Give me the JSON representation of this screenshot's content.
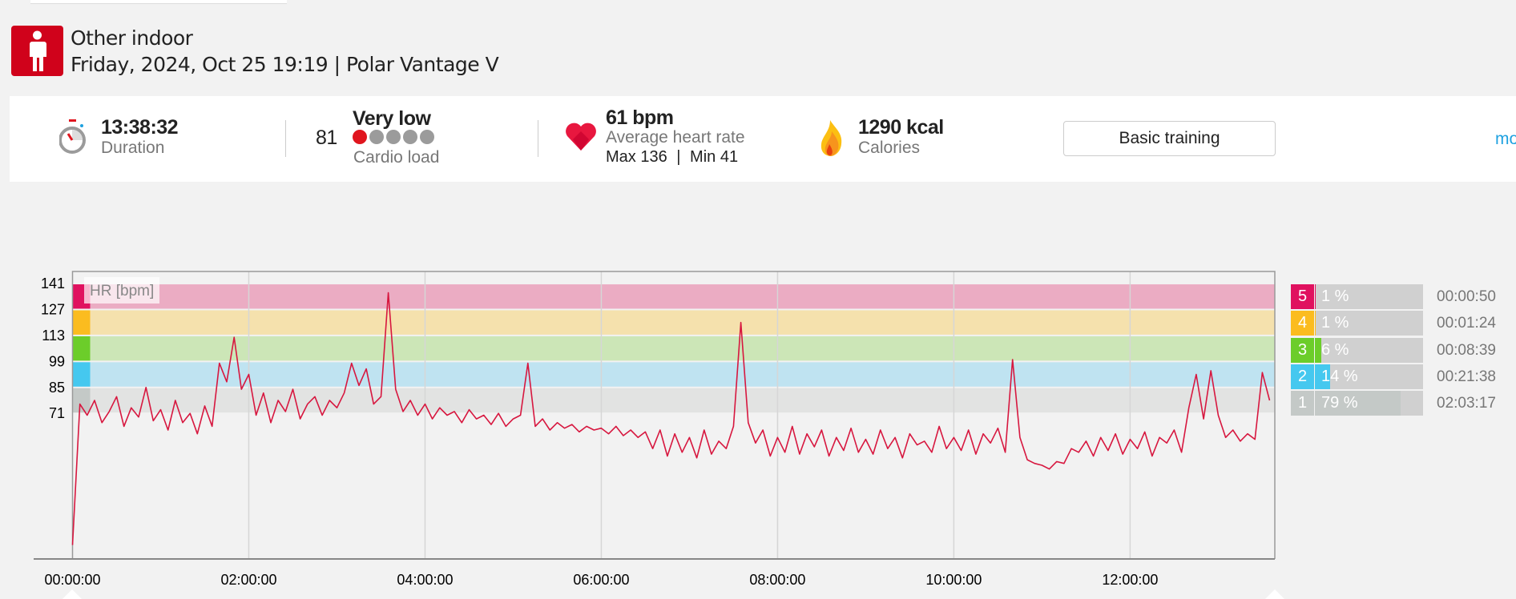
{
  "header": {
    "sport": "Other indoor",
    "subtitle": "Friday, 2024, Oct 25 19:19 | Polar Vantage V"
  },
  "summary": {
    "duration": {
      "value": "13:38:32",
      "label": "Duration"
    },
    "cardio_load": {
      "value": "81",
      "status": "Very low",
      "label": "Cardio load",
      "level": 1,
      "max_level": 5
    },
    "heart_rate": {
      "value": "61 bpm",
      "label": "Average heart rate",
      "max": "Max 136",
      "sep": "|",
      "min": "Min 41"
    },
    "calories": {
      "value": "1290 kcal",
      "label": "Calories"
    },
    "benefit_button": "Basic training",
    "more_link": "mo"
  },
  "colors": {
    "brand": "#d0021b",
    "hr_line": "#d7173f",
    "link": "#1ea1e0"
  },
  "zones": [
    {
      "zone": "5",
      "percent": "1 %",
      "fraction": 0.01,
      "time": "00:00:50",
      "color": "#e0115f",
      "band": "#ebacc3",
      "lo": 127,
      "hi": 141
    },
    {
      "zone": "4",
      "percent": "1 %",
      "fraction": 0.01,
      "time": "00:01:24",
      "color": "#fbbc1f",
      "band": "#f5e1ad",
      "lo": 113,
      "hi": 127
    },
    {
      "zone": "3",
      "percent": "6 %",
      "fraction": 0.06,
      "time": "00:08:39",
      "color": "#6ccd2a",
      "band": "#cce6b7",
      "lo": 99,
      "hi": 113
    },
    {
      "zone": "2",
      "percent": "14 %",
      "fraction": 0.14,
      "time": "00:21:38",
      "color": "#45c8ef",
      "band": "#bfe3f1",
      "lo": 85,
      "hi": 99
    },
    {
      "zone": "1",
      "percent": "79 %",
      "fraction": 0.79,
      "time": "02:03:17",
      "color": "#c4c9c7",
      "band": "#e2e3e2",
      "lo": 71,
      "hi": 85
    }
  ],
  "chart_data": {
    "type": "line",
    "title": "",
    "ylabel": "HR [bpm]",
    "xlabel": "",
    "y_ticks": [
      "141",
      "127",
      "113",
      "99",
      "85",
      "71"
    ],
    "y_tick_values": [
      141,
      127,
      113,
      99,
      85,
      71
    ],
    "ylim": [
      -7.5,
      147.5
    ],
    "x_ticks": [
      "00:00:00",
      "02:00:00",
      "04:00:00",
      "06:00:00",
      "08:00:00",
      "10:00:00",
      "12:00:00"
    ],
    "x_tick_hours": [
      0,
      2,
      4,
      6,
      8,
      10,
      12
    ],
    "xlim_hours": [
      0,
      13.642
    ],
    "grid": "vertical",
    "series": [
      {
        "name": "HR",
        "step_minutes": 5,
        "values": [
          0,
          76,
          70,
          78,
          66,
          72,
          80,
          64,
          74,
          69,
          85,
          67,
          73,
          62,
          78,
          66,
          71,
          60,
          75,
          64,
          98,
          88,
          112,
          84,
          92,
          70,
          82,
          66,
          78,
          72,
          84,
          68,
          76,
          80,
          70,
          78,
          74,
          82,
          98,
          86,
          95,
          76,
          80,
          136,
          84,
          72,
          78,
          70,
          76,
          68,
          74,
          70,
          72,
          66,
          73,
          68,
          70,
          65,
          71,
          64,
          68,
          70,
          98,
          64,
          68,
          62,
          66,
          63,
          65,
          61,
          64,
          62,
          63,
          60,
          64,
          59,
          62,
          58,
          61,
          52,
          62,
          48,
          60,
          50,
          58,
          47,
          62,
          49,
          56,
          52,
          64,
          120,
          66,
          55,
          62,
          48,
          58,
          50,
          64,
          49,
          60,
          53,
          62,
          48,
          58,
          51,
          63,
          50,
          57,
          49,
          62,
          52,
          58,
          47,
          60,
          54,
          56,
          50,
          64,
          52,
          58,
          51,
          62,
          49,
          60,
          55,
          63,
          50,
          100,
          58,
          46,
          44,
          43,
          41,
          45,
          44,
          52,
          50,
          56,
          48,
          58,
          51,
          60,
          49,
          57,
          52,
          61,
          48,
          58,
          55,
          62,
          50,
          74,
          92,
          68,
          94,
          70,
          58,
          62,
          56,
          60,
          57,
          93,
          78
        ]
      }
    ]
  }
}
